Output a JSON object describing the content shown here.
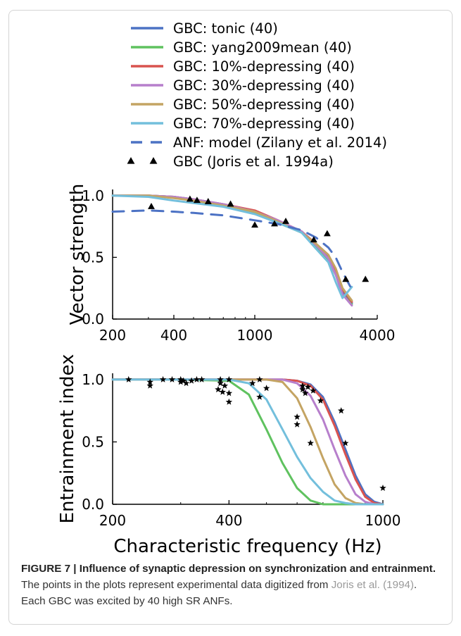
{
  "legend": {
    "entries": [
      {
        "label": "GBC: tonic (40)",
        "color": "#4c72c4",
        "style": "line"
      },
      {
        "label": "GBC: yang2009mean (40)",
        "color": "#5fc25f",
        "style": "line"
      },
      {
        "label": "GBC: 10%-depressing (40)",
        "color": "#d9534f",
        "style": "line"
      },
      {
        "label": "GBC: 30%-depressing (40)",
        "color": "#b77fcc",
        "style": "line"
      },
      {
        "label": "GBC: 50%-depressing (40)",
        "color": "#c4a463",
        "style": "line"
      },
      {
        "label": "GBC: 70%-depressing (40)",
        "color": "#73bfdc",
        "style": "line"
      },
      {
        "label": "ANF: model (Zilany et al. 2014)",
        "color": "#4c72c4",
        "style": "dash"
      },
      {
        "label": "GBC (Joris et al. 1994a)",
        "color": "#000000",
        "style": "triangle"
      }
    ]
  },
  "chart_data": [
    {
      "type": "line",
      "ylabel": "Vector strength",
      "xscale": "log",
      "xlim": [
        200,
        4000
      ],
      "ylim": [
        0,
        1.05
      ],
      "xticks": [
        200,
        400,
        1000,
        4000
      ],
      "xtick_labels": [
        "200",
        "400",
        "1000",
        "4000"
      ],
      "yticks": [
        0,
        0.5,
        1
      ],
      "ytick_labels": [
        "0.0",
        "0.5",
        "1.0"
      ],
      "x": [
        200,
        300,
        400,
        500,
        700,
        1000,
        1300,
        1700,
        2000,
        2300,
        2500,
        2700,
        3000
      ],
      "series": [
        {
          "name": "GBC: tonic (40)",
          "color": "#4c72c4",
          "values": [
            1.0,
            1.0,
            0.99,
            0.97,
            0.93,
            0.87,
            0.79,
            0.7,
            0.6,
            0.5,
            0.38,
            0.22,
            0.13
          ]
        },
        {
          "name": "GBC: yang2009mean (40)",
          "color": "#5fc25f",
          "values": [
            1.0,
            1.0,
            0.99,
            0.96,
            0.92,
            0.86,
            0.78,
            0.7,
            0.59,
            0.48,
            0.36,
            0.2,
            0.12
          ]
        },
        {
          "name": "GBC: 10%-depressing (40)",
          "color": "#d9534f",
          "values": [
            1.0,
            1.0,
            0.99,
            0.97,
            0.93,
            0.88,
            0.8,
            0.71,
            0.61,
            0.52,
            0.4,
            0.24,
            0.14
          ]
        },
        {
          "name": "GBC: 30%-depressing (40)",
          "color": "#b77fcc",
          "values": [
            1.0,
            1.0,
            0.99,
            0.97,
            0.93,
            0.87,
            0.8,
            0.71,
            0.6,
            0.49,
            0.36,
            0.2,
            0.11
          ]
        },
        {
          "name": "GBC: 50%-depressing (40)",
          "color": "#c4a463",
          "values": [
            1.0,
            1.0,
            0.98,
            0.96,
            0.92,
            0.87,
            0.79,
            0.7,
            0.61,
            0.52,
            0.41,
            0.25,
            0.15
          ]
        },
        {
          "name": "GBC: 70%-depressing (40)",
          "color": "#73bfdc",
          "values": [
            1.0,
            0.99,
            0.96,
            0.94,
            0.91,
            0.85,
            0.78,
            0.7,
            0.57,
            0.46,
            0.3,
            0.17,
            0.26
          ]
        },
        {
          "name": "ANF: model (Zilany et al. 2014)",
          "color": "#4c72c4",
          "dash": true,
          "values": [
            0.87,
            0.88,
            0.87,
            0.86,
            0.84,
            0.8,
            0.77,
            0.72,
            0.66,
            0.58,
            0.5,
            0.38,
            0.24
          ]
        }
      ],
      "points": {
        "name": "GBC (Joris et al. 1994a)",
        "marker": "triangle",
        "x": [
          310,
          480,
          520,
          590,
          760,
          1000,
          1250,
          1420,
          1950,
          2270,
          2800,
          3500
        ],
        "y": [
          0.91,
          0.97,
          0.96,
          0.95,
          0.93,
          0.76,
          0.77,
          0.79,
          0.64,
          0.69,
          0.32,
          0.32
        ]
      }
    },
    {
      "type": "line",
      "ylabel": "Entrainment index",
      "xlabel": "Characteristic frequency (Hz)",
      "xscale": "log",
      "xlim": [
        200,
        1000
      ],
      "ylim": [
        0,
        1.05
      ],
      "xticks": [
        200,
        400,
        1000
      ],
      "xtick_labels": [
        "200",
        "400",
        "1000"
      ],
      "yticks": [
        0,
        0.5,
        1
      ],
      "ytick_labels": [
        "0.0",
        "0.5",
        "1.0"
      ],
      "x": [
        200,
        300,
        400,
        450,
        500,
        550,
        600,
        650,
        700,
        750,
        800,
        850,
        900,
        950,
        1000
      ],
      "series": [
        {
          "name": "GBC: tonic (40)",
          "color": "#4c72c4",
          "values": [
            1.0,
            1.0,
            1.0,
            1.0,
            1.0,
            1.0,
            0.99,
            0.96,
            0.86,
            0.66,
            0.44,
            0.23,
            0.08,
            0.02,
            0.0
          ]
        },
        {
          "name": "GBC: yang2009mean (40)",
          "color": "#5fc25f",
          "values": [
            1.0,
            1.0,
            0.99,
            0.88,
            0.6,
            0.33,
            0.13,
            0.03,
            0.0,
            0.0,
            0.0,
            0.0,
            0.0,
            0.0,
            0.0
          ]
        },
        {
          "name": "GBC: 10%-depressing (40)",
          "color": "#d9534f",
          "values": [
            1.0,
            1.0,
            1.0,
            1.0,
            1.0,
            1.0,
            0.99,
            0.95,
            0.84,
            0.63,
            0.4,
            0.2,
            0.06,
            0.01,
            0.0
          ]
        },
        {
          "name": "GBC: 30%-depressing (40)",
          "color": "#b77fcc",
          "values": [
            1.0,
            1.0,
            1.0,
            1.0,
            1.0,
            1.0,
            0.97,
            0.87,
            0.68,
            0.44,
            0.23,
            0.08,
            0.02,
            0.0,
            0.0
          ]
        },
        {
          "name": "GBC: 50%-depressing (40)",
          "color": "#c4a463",
          "values": [
            1.0,
            1.0,
            1.0,
            1.0,
            1.0,
            0.98,
            0.85,
            0.62,
            0.37,
            0.16,
            0.05,
            0.01,
            0.0,
            0.0,
            0.0
          ]
        },
        {
          "name": "GBC: 70%-depressing (40)",
          "color": "#73bfdc",
          "values": [
            1.0,
            1.0,
            1.0,
            0.97,
            0.84,
            0.6,
            0.38,
            0.21,
            0.1,
            0.03,
            0.01,
            0.0,
            0.0,
            0.0,
            0.0
          ]
        }
      ],
      "points": {
        "name": "GBC (Joris et al. 1994a)",
        "marker": "star",
        "x": [
          220,
          250,
          250,
          270,
          285,
          300,
          300,
          305,
          310,
          320,
          330,
          340,
          375,
          380,
          380,
          385,
          390,
          400,
          400,
          400,
          460,
          480,
          480,
          500,
          600,
          600,
          620,
          620,
          630,
          640,
          650,
          660,
          690,
          780,
          800,
          1000
        ],
        "y": [
          1.0,
          0.98,
          0.95,
          1.0,
          1.0,
          1.0,
          0.98,
          0.99,
          0.97,
          0.99,
          1.0,
          1.0,
          0.92,
          0.97,
          1.0,
          0.9,
          0.95,
          0.89,
          0.82,
          1.0,
          0.97,
          0.86,
          1.0,
          0.93,
          0.64,
          0.7,
          0.92,
          0.95,
          0.89,
          0.94,
          0.49,
          0.91,
          0.83,
          0.75,
          0.49,
          0.13
        ]
      }
    }
  ],
  "caption": {
    "figure_label": "FIGURE 7 | Influence of synaptic depression on synchronization and entrainment.",
    "text_1": " The points in the plots represent experimental data digitized from ",
    "citation": "Joris et al. (1994)",
    "text_2": ". Each GBC was excited by 40 high SR ANFs."
  }
}
